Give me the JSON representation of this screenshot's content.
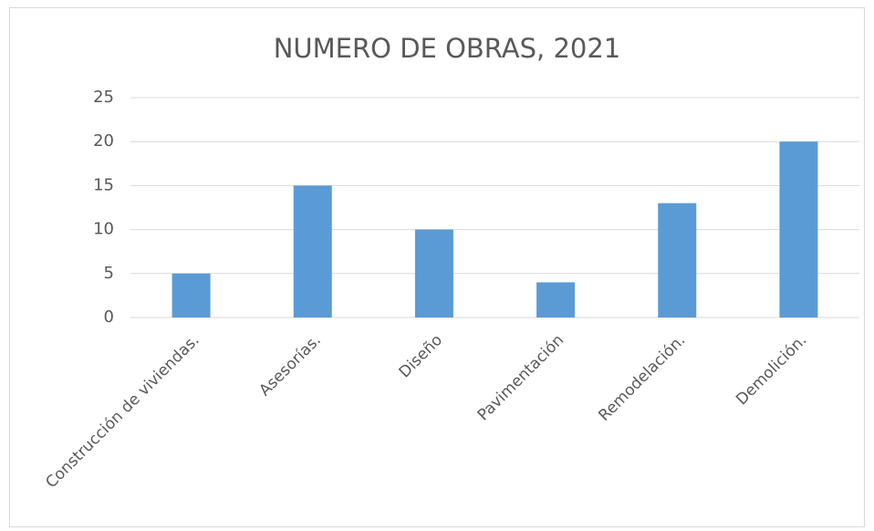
{
  "chart_data": {
    "type": "bar",
    "title": "NUMERO DE OBRAS, 2021",
    "categories": [
      "Construcción de viviendas.",
      "Asesorías.",
      "Diseño",
      "Pavimentación",
      "Remodelación.",
      "Demolición."
    ],
    "values": [
      5,
      15,
      10,
      4,
      13,
      20
    ],
    "color": "#5b9bd5",
    "ylim": [
      0,
      25
    ],
    "yticks": [
      0,
      5,
      10,
      15,
      20,
      25
    ],
    "grid": true
  }
}
